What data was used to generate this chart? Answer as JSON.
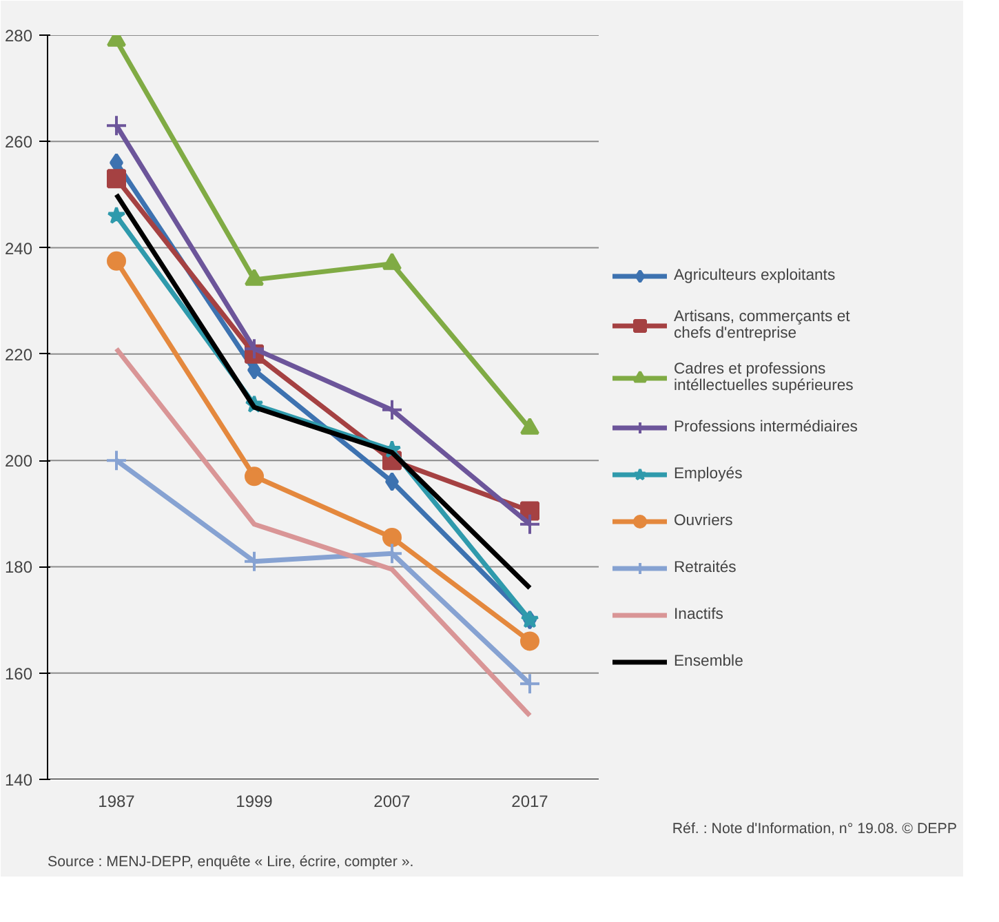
{
  "chart_data": {
    "type": "line",
    "categories": [
      "1987",
      "1999",
      "2007",
      "2017"
    ],
    "ylim": [
      140,
      280
    ],
    "yticks": [
      140,
      160,
      180,
      200,
      220,
      240,
      260,
      280
    ],
    "grid": "y",
    "legend": "right",
    "series": [
      {
        "name": "Agriculteurs exploitants",
        "color": "#3d72b0",
        "marker": "diamond",
        "values": [
          256,
          217,
          196,
          170
        ]
      },
      {
        "name": "Artisans, commerçants et\nchefs d'entreprise",
        "color": "#a54142",
        "marker": "square",
        "values": [
          253,
          220,
          200,
          190.5
        ]
      },
      {
        "name": "Cadres et professions\nintéllectuelles supérieures",
        "color": "#80ab44",
        "marker": "triangle",
        "values": [
          279,
          234,
          237,
          206
        ]
      },
      {
        "name": "Professions intermédiaires",
        "color": "#6c559a",
        "marker": "cross",
        "values": [
          263,
          221,
          209.5,
          188
        ]
      },
      {
        "name": "Employés",
        "color": "#2f9aac",
        "marker": "star",
        "values": [
          246,
          210.5,
          202,
          170
        ]
      },
      {
        "name": "Ouvriers",
        "color": "#e4883d",
        "marker": "circle",
        "values": [
          237.5,
          197,
          185.5,
          166
        ]
      },
      {
        "name": "Retraités",
        "color": "#86a2d2",
        "marker": "cross",
        "values": [
          200,
          181,
          182.5,
          158
        ]
      },
      {
        "name": "Inactifs",
        "color": "#d99596",
        "values": [
          221,
          188,
          179.5,
          152
        ]
      },
      {
        "name": "Ensemble",
        "color": "#000000",
        "values": [
          250,
          210,
          201.5,
          176
        ]
      }
    ],
    "annotations": [
      "Source : MENJ-DEPP, enquête « Lire, écrire, compter ».",
      "Réf. : Note d'Information, n° 19.08. © DEPP"
    ]
  }
}
